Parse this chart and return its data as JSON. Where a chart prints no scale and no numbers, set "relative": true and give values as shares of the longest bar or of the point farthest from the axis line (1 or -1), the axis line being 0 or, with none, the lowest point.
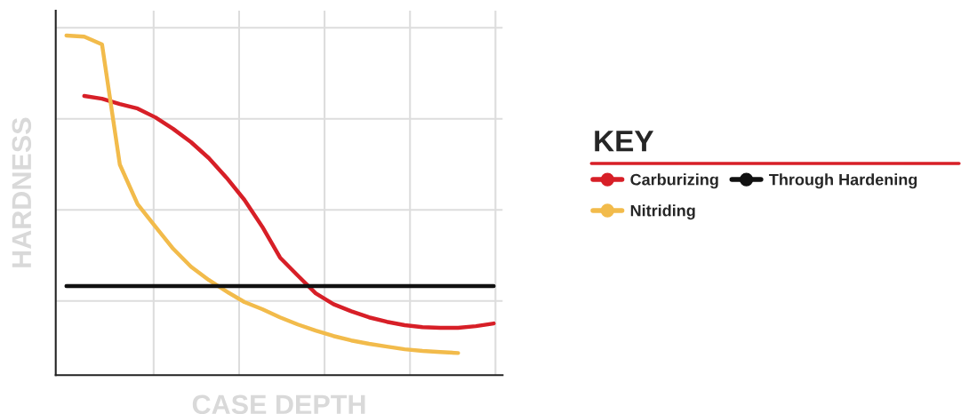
{
  "chart_data": {
    "type": "line",
    "relative": true,
    "xlabel": "CASE DEPTH",
    "ylabel": "HARDNESS",
    "legend_title": "KEY",
    "legend": "right",
    "grid": true,
    "categories": [
      null,
      null,
      null,
      null,
      null,
      null,
      null,
      null,
      null,
      null,
      null,
      null,
      null,
      null,
      null,
      null,
      null,
      null,
      null,
      null,
      null,
      null,
      null,
      null,
      null
    ],
    "series": [
      {
        "name": "Carburizing",
        "color": "#d71f27",
        "values": [
          null,
          0.822,
          0.814,
          0.798,
          0.785,
          0.759,
          0.725,
          0.686,
          0.639,
          0.581,
          0.516,
          0.437,
          0.346,
          0.293,
          0.241,
          0.209,
          0.188,
          0.17,
          0.157,
          0.147,
          0.141,
          0.139,
          0.139,
          0.144,
          0.152
        ]
      },
      {
        "name": "Nitriding",
        "color": "#f2bb4b",
        "values": [
          1.0,
          0.997,
          0.974,
          0.62,
          0.503,
          0.437,
          0.372,
          0.319,
          0.28,
          0.246,
          0.215,
          0.194,
          0.17,
          0.149,
          0.131,
          0.115,
          0.102,
          0.092,
          0.084,
          0.076,
          0.071,
          0.068,
          0.065,
          null,
          null
        ]
      },
      {
        "name": "Through Hardening",
        "color": "#111111",
        "values": [
          0.262,
          0.262,
          0.262,
          0.262,
          0.262,
          0.262,
          0.262,
          0.262,
          0.262,
          0.262,
          0.262,
          0.262,
          0.262,
          0.262,
          0.262,
          0.262,
          0.262,
          0.262,
          0.262,
          0.262,
          0.262,
          0.262,
          0.262,
          0.262,
          0.262
        ]
      }
    ]
  }
}
